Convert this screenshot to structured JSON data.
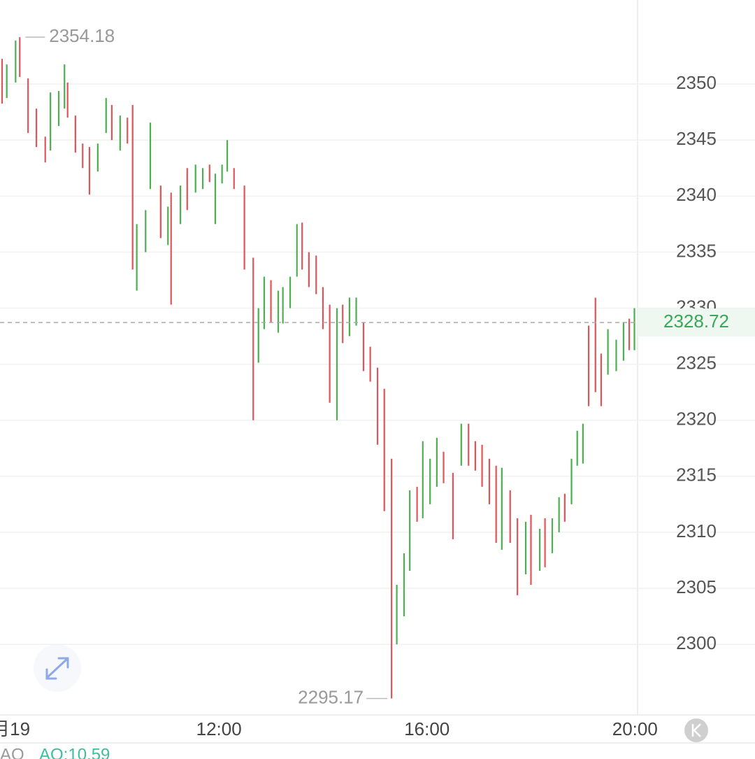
{
  "chart_data": {
    "type": "ohlc",
    "series": [
      {
        "color": "#4caf50",
        "x": [
          7.92,
          8.09,
          8.76,
          8.92,
          9.03,
          9.67,
          9.83,
          10.1,
          10.42,
          10.59,
          10.68,
          11.02,
          11.26,
          11.55,
          11.69,
          11.93,
          12.06,
          12.16,
          12.76,
          12.87,
          13.14,
          13.23,
          13.37,
          13.5,
          14.27,
          14.51,
          14.64,
          15.42,
          15.56,
          15.67,
          15.92,
          16.06,
          16.19,
          16.66,
          17.44,
          17.9,
          18.17,
          18.41,
          18.54,
          18.78,
          18.89,
          19.0,
          19.48,
          19.64,
          19.78,
          19.99
        ],
        "high": [
          2351.75,
          2353.88,
          2349.25,
          2349.38,
          2351.75,
          2344.69,
          2348.75,
          2347.19,
          2337.5,
          2338.75,
          2346.56,
          2339.06,
          2340.94,
          2342.81,
          2342.5,
          2342.0,
          2342.81,
          2345.0,
          2330.0,
          2332.81,
          2331.56,
          2331.88,
          2332.81,
          2337.5,
          2330.0,
          2330.94,
          2330.94,
          2305.31,
          2308.13,
          2313.75,
          2318.13,
          2316.56,
          2318.44,
          2319.69,
          2315.75,
          2310.94,
          2310.31,
          2311.25,
          2313.13,
          2316.56,
          2319.06,
          2319.69,
          2328.13,
          2327.19,
          2328.75,
          2330.0
        ],
        "low": [
          2348.75,
          2350.13,
          2344.06,
          2346.25,
          2347.81,
          2342.19,
          2345.63,
          2344.06,
          2331.56,
          2335.0,
          2340.63,
          2335.63,
          2337.5,
          2340.31,
          2340.63,
          2337.5,
          2341.13,
          2342.19,
          2325.13,
          2328.13,
          2327.81,
          2328.63,
          2330.0,
          2332.81,
          2320.0,
          2327.5,
          2328.44,
          2300.0,
          2302.5,
          2306.56,
          2311.25,
          2312.5,
          2314.06,
          2315.94,
          2308.44,
          2306.25,
          2306.56,
          2308.13,
          2310.0,
          2312.5,
          2315.94,
          2316.13,
          2324.06,
          2324.38,
          2325.31,
          2326.25
        ]
      },
      {
        "color": "#e0545a",
        "x": [
          7.83,
          8.17,
          8.33,
          8.49,
          8.66,
          9.09,
          9.24,
          9.38,
          9.51,
          9.94,
          10.24,
          10.34,
          10.88,
          11.08,
          11.39,
          11.82,
          12.29,
          12.49,
          12.66,
          13.0,
          13.6,
          13.73,
          13.87,
          14.0,
          14.13,
          14.38,
          14.78,
          14.91,
          15.05,
          15.18,
          15.32,
          15.81,
          16.32,
          16.5,
          16.8,
          16.93,
          17.06,
          17.2,
          17.33,
          17.6,
          17.74,
          18.0,
          18.27,
          18.65,
          19.11,
          19.24,
          19.35,
          19.89
        ],
        "high": [
          2352.25,
          2354.18,
          2350.5,
          2347.81,
          2345.31,
          2350.13,
          2347.19,
          2344.69,
          2344.38,
          2348.13,
          2347.0,
          2348.13,
          2340.94,
          2340.31,
          2342.5,
          2342.81,
          2342.5,
          2340.94,
          2334.5,
          2332.5,
          2337.63,
          2335.0,
          2334.69,
          2331.88,
          2330.31,
          2330.31,
          2328.75,
          2326.56,
          2324.69,
          2322.81,
          2316.56,
          2314.06,
          2317.19,
          2315.31,
          2319.69,
          2318.13,
          2317.81,
          2316.56,
          2315.94,
          2313.75,
          2311.25,
          2311.56,
          2311.25,
          2313.44,
          2328.44,
          2330.94,
          2325.94,
          2329.06
        ],
        "low": [
          2348.25,
          2350.63,
          2345.63,
          2344.38,
          2343.0,
          2347.0,
          2343.88,
          2342.5,
          2340.13,
          2345.0,
          2344.69,
          2333.44,
          2336.25,
          2330.31,
          2338.75,
          2341.25,
          2340.63,
          2333.44,
          2320.0,
          2328.75,
          2333.44,
          2331.88,
          2331.25,
          2328.13,
          2321.56,
          2326.88,
          2324.38,
          2323.44,
          2317.81,
          2311.88,
          2295.17,
          2310.94,
          2314.38,
          2309.38,
          2315.94,
          2315.5,
          2314.06,
          2312.5,
          2309.06,
          2309.06,
          2304.38,
          2305.31,
          2306.88,
          2310.94,
          2321.25,
          2322.5,
          2321.25,
          2326.25
        ]
      }
    ],
    "xlim": [
      7.79,
      20.05
    ],
    "xticks": [
      {
        "value": 8,
        "label": "月19"
      },
      {
        "value": 12,
        "label": "12:00"
      },
      {
        "value": 16,
        "label": "16:00"
      },
      {
        "value": 20,
        "label": "20:00"
      }
    ],
    "ylim": [
      2293.7,
      2357.5
    ],
    "yticks": [
      2300,
      2305,
      2310,
      2315,
      2320,
      2325,
      2330,
      2335,
      2340,
      2345,
      2350
    ],
    "grid": true,
    "max_marker": {
      "x": 8.17,
      "value": 2354.18
    },
    "min_marker": {
      "x": 15.32,
      "value": 2295.17
    },
    "last_price": {
      "value": 2328.72,
      "color": "#3aa757"
    },
    "indicator": {
      "name": "AO",
      "label": "AO:10.59"
    }
  }
}
